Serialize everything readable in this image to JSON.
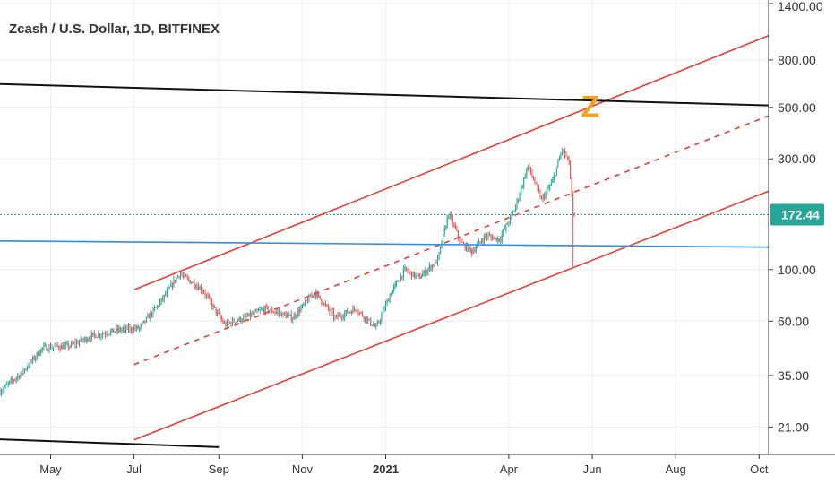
{
  "chart_data": {
    "type": "candlestick",
    "title": "Zcash / U.S. Dollar, 1D, BITFINEX",
    "yscale": "log",
    "ylim": [
      16,
      1450
    ],
    "y_ticks": [
      {
        "value": 21,
        "label": "21.00"
      },
      {
        "value": 35,
        "label": "35.00"
      },
      {
        "value": 60,
        "label": "60.00"
      },
      {
        "value": 100,
        "label": "100.00"
      },
      {
        "value": 172.44,
        "label": "172.44",
        "current": true
      },
      {
        "value": 300,
        "label": "300.00"
      },
      {
        "value": 500,
        "label": "500.00"
      },
      {
        "value": 800,
        "label": "800.00"
      },
      {
        "value": 1400,
        "label": "1400.00"
      }
    ],
    "x_ticks": [
      {
        "date": "2020-05-01",
        "label": "May"
      },
      {
        "date": "2020-07-01",
        "label": "Jul"
      },
      {
        "date": "2020-09-01",
        "label": "Sep"
      },
      {
        "date": "2020-11-01",
        "label": "Nov"
      },
      {
        "date": "2021-01-01",
        "label": "2021",
        "bold": true
      },
      {
        "date": "2021-04-01",
        "label": "Apr"
      },
      {
        "date": "2021-06-01",
        "label": "Jun"
      },
      {
        "date": "2021-08-01",
        "label": "Aug"
      },
      {
        "date": "2021-10-01",
        "label": "Oct"
      }
    ],
    "xlim": [
      "2020-03-25",
      "2021-10-08"
    ],
    "current_price": 172.44,
    "price_path": [
      [
        "2020-03-25",
        30
      ],
      [
        "2020-04-10",
        36
      ],
      [
        "2020-04-25",
        46
      ],
      [
        "2020-05-15",
        47
      ],
      [
        "2020-06-01",
        52
      ],
      [
        "2020-06-20",
        55
      ],
      [
        "2020-07-05",
        56
      ],
      [
        "2020-07-20",
        72
      ],
      [
        "2020-08-03",
        96
      ],
      [
        "2020-08-20",
        82
      ],
      [
        "2020-09-05",
        58
      ],
      [
        "2020-09-20",
        62
      ],
      [
        "2020-10-05",
        68
      ],
      [
        "2020-10-25",
        62
      ],
      [
        "2020-11-10",
        80
      ],
      [
        "2020-11-25",
        62
      ],
      [
        "2020-12-10",
        68
      ],
      [
        "2020-12-25",
        56
      ],
      [
        "2021-01-05",
        80
      ],
      [
        "2021-01-15",
        100
      ],
      [
        "2021-01-25",
        92
      ],
      [
        "2021-02-08",
        110
      ],
      [
        "2021-02-16",
        175
      ],
      [
        "2021-02-25",
        130
      ],
      [
        "2021-03-05",
        120
      ],
      [
        "2021-03-15",
        140
      ],
      [
        "2021-03-25",
        135
      ],
      [
        "2021-04-05",
        180
      ],
      [
        "2021-04-15",
        280
      ],
      [
        "2021-04-25",
        200
      ],
      [
        "2021-05-03",
        240
      ],
      [
        "2021-05-10",
        330
      ],
      [
        "2021-05-15",
        290
      ],
      [
        "2021-05-18",
        175
      ],
      [
        "2021-05-19",
        172.44
      ]
    ],
    "lines": [
      {
        "name": "channel-upper",
        "color": "#f23a2f",
        "dash": false,
        "points": [
          [
            "2020-07-01",
            82
          ],
          [
            "2021-10-08",
            1020
          ]
        ]
      },
      {
        "name": "channel-middle",
        "color": "#f23a2f",
        "dash": true,
        "points": [
          [
            "2020-07-01",
            39
          ],
          [
            "2021-10-08",
            460
          ]
        ]
      },
      {
        "name": "channel-lower",
        "color": "#f23a2f",
        "dash": false,
        "points": [
          [
            "2020-07-01",
            18.5
          ],
          [
            "2021-10-08",
            218
          ]
        ]
      },
      {
        "name": "resistance-black",
        "color": "#111111",
        "dash": false,
        "points": [
          [
            "2020-03-25",
            630
          ],
          [
            "2021-10-08",
            510
          ]
        ]
      },
      {
        "name": "support-black",
        "color": "#111111",
        "dash": false,
        "points": [
          [
            "2020-03-25",
            18.6
          ],
          [
            "2020-09-01",
            17.2
          ]
        ]
      },
      {
        "name": "horizontal-blue",
        "color": "#2f8de4",
        "dash": false,
        "points": [
          [
            "2020-03-25",
            133
          ],
          [
            "2021-10-08",
            125
          ]
        ]
      }
    ],
    "annotation": {
      "text": "Z",
      "date": "2021-05-31",
      "value": 520,
      "color": "#f7a21b"
    },
    "colors": {
      "up": "#26a69a",
      "down": "#ef5350",
      "badge": "#26a69a"
    }
  }
}
